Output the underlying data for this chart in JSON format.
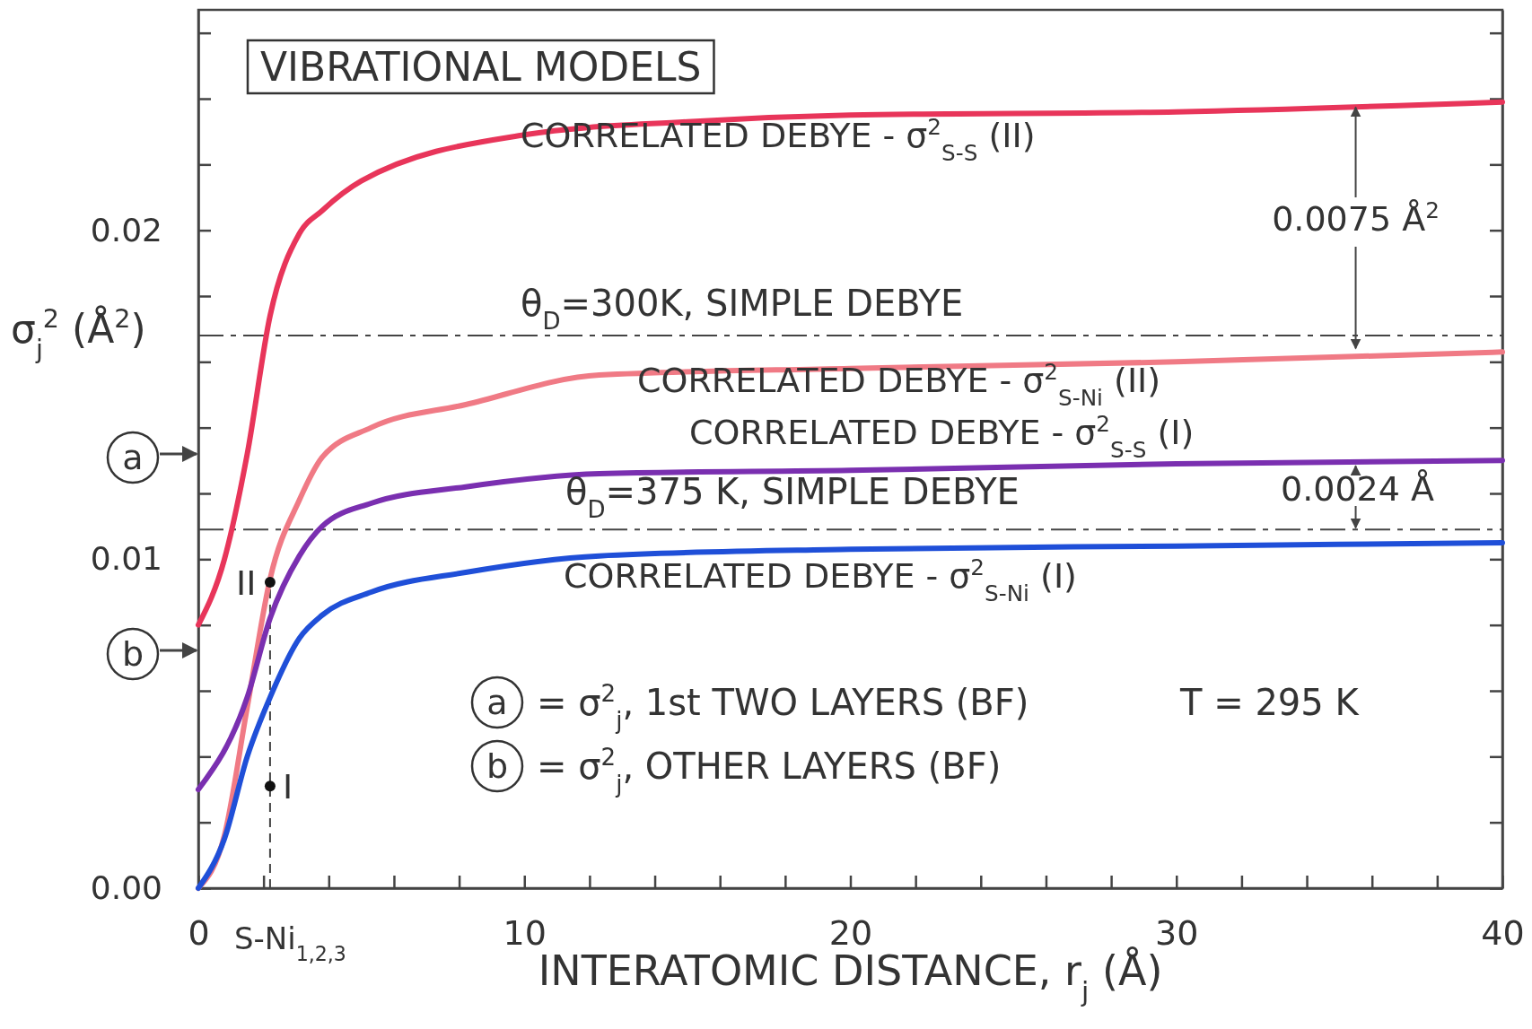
{
  "chart_data": {
    "type": "line",
    "title": "VIBRATIONAL MODELS",
    "xlabel": "INTERATOMIC DISTANCE, r$_{j}$ (Å)",
    "ylabel": "σ$_{j}$$^{2}$ (Å$^{2}$)",
    "xlim": [
      0,
      40
    ],
    "ylim": [
      0,
      0.0267
    ],
    "xticks": [
      0,
      {
        "value": 2,
        "label": null
      },
      {
        "value": 4,
        "label": null
      },
      {
        "value": 6,
        "label": null
      },
      {
        "value": 8,
        "label": null
      },
      10,
      {
        "value": 12,
        "label": null
      },
      {
        "value": 14,
        "label": null
      },
      {
        "value": 16,
        "label": null
      },
      {
        "value": 18,
        "label": null
      },
      20,
      {
        "value": 22,
        "label": null
      },
      {
        "value": 24,
        "label": null
      },
      {
        "value": 26,
        "label": null
      },
      {
        "value": 28,
        "label": null
      },
      30,
      {
        "value": 32,
        "label": null
      },
      {
        "value": 34,
        "label": null
      },
      {
        "value": 36,
        "label": null
      },
      {
        "value": 38,
        "label": null
      },
      40
    ],
    "yticks": [
      {
        "value": 0,
        "label": "0.00"
      },
      {
        "value": 0.002,
        "label": null
      },
      {
        "value": 0.004,
        "label": null
      },
      {
        "value": 0.006,
        "label": null
      },
      {
        "value": 0.008,
        "label": null
      },
      {
        "value": 0.01,
        "label": "0.01"
      },
      {
        "value": 0.012,
        "label": null
      },
      {
        "value": 0.014,
        "label": null
      },
      {
        "value": 0.016,
        "label": null
      },
      {
        "value": 0.018,
        "label": null
      },
      {
        "value": 0.02,
        "label": "0.02"
      },
      {
        "value": 0.022,
        "label": null
      },
      {
        "value": 0.024,
        "label": null
      },
      {
        "value": 0.026,
        "label": null
      }
    ],
    "grid": false,
    "marker": "none",
    "line_style": "solid",
    "series": [
      {
        "name": "CORRELATED DEBYE - σ$^{2}$$_{S-S}$ (II)",
        "color": "#e8355a",
        "x": [
          0,
          0.8,
          1.5,
          2.2,
          3.1,
          3.8,
          5,
          10,
          15,
          20,
          30,
          40
        ],
        "values": [
          0.008,
          0.01,
          0.0132,
          0.0174,
          0.0199,
          0.0206,
          0.0215,
          0.0229,
          0.0233,
          0.0235,
          0.0236,
          0.0239
        ]
      },
      {
        "name": "CORRELATED DEBYE - σ$^{2}$$_{S-Ni}$ (II)",
        "color": "#f07a85",
        "x": [
          0,
          0.8,
          1.5,
          2.2,
          3.1,
          3.8,
          5.3,
          8.2,
          12.3,
          20,
          30,
          40
        ],
        "values": [
          0,
          0.0016,
          0.0055,
          0.0094,
          0.0118,
          0.0131,
          0.014,
          0.0147,
          0.0156,
          0.0158,
          0.016,
          0.0163
        ]
      },
      {
        "name": "CORRELATED DEBYE - σ$^{2}$$_{S-S}$ (I)",
        "color": "#7a2fb0",
        "x": [
          0,
          1.5,
          2.2,
          3.1,
          3.8,
          5.3,
          8.2,
          12.3,
          20,
          30,
          40
        ],
        "values": [
          0.003,
          0.0058,
          0.0082,
          0.0101,
          0.011,
          0.0117,
          0.0122,
          0.0126,
          0.0127,
          0.0129,
          0.013
        ]
      },
      {
        "name": "CORRELATED DEBYE - σ$^{2}$$_{S-Ni}$ (I)",
        "color": "#1f4fd8",
        "x": [
          0,
          0.8,
          1.5,
          2.2,
          3.1,
          3.8,
          5.3,
          8.2,
          12.3,
          20,
          30,
          40
        ],
        "values": [
          0,
          0.0015,
          0.004,
          0.0058,
          0.0076,
          0.0083,
          0.009,
          0.0096,
          0.0101,
          0.0103,
          0.0104,
          0.0105
        ]
      },
      {
        "type": "scatter",
        "color": "#111111",
        "marker": "circle",
        "x": [
          2.2,
          2.2
        ],
        "values": [
          0.0093,
          0.0031
        ]
      }
    ],
    "ref_lines": [
      {
        "axis": "y",
        "value": 0.0168,
        "color": "#444444",
        "line_style": "dashdot"
      },
      {
        "axis": "y",
        "value": 0.0109,
        "color": "#444444",
        "line_style": "dashdot"
      },
      {
        "axis": "x",
        "value": 2.2,
        "label": "S-Ni$_{1,2,3}$",
        "color": "#444444",
        "line_style": "dashed"
      }
    ],
    "annotations": [
      "II",
      "I",
      "a",
      "b",
      {
        "text": "0.0075 Å$^{2}$",
        "x": 35.5,
        "y": 0.0238
      },
      "0.0024 Å",
      "a = σ$^{2}$$_{j}$, 1st TWO LAYERS (BF)",
      "b = σ$^{2}$$_{j}$, OTHER LAYERS (BF)",
      "T = 295 K",
      "θ$_{D}$=300K, SIMPLE DEBYE",
      "θ$_{D}$=375 K, SIMPLE DEBYE"
    ]
  }
}
